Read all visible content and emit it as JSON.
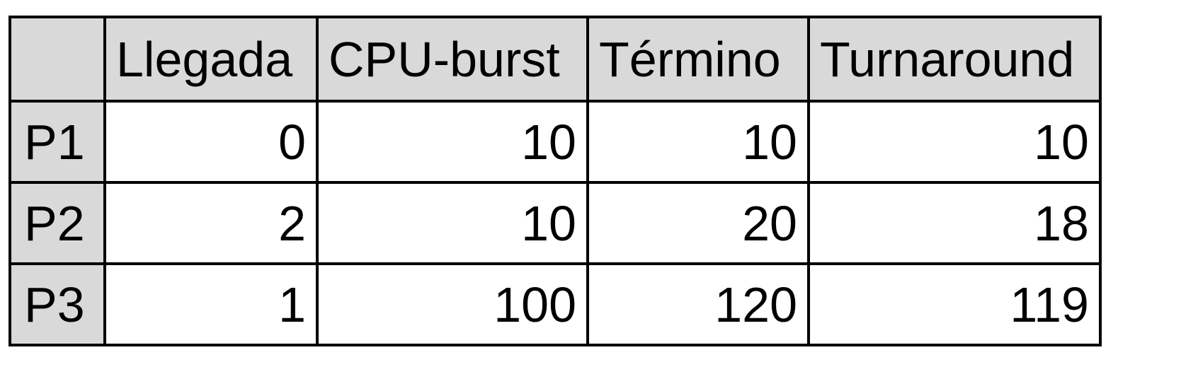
{
  "table": {
    "columns": [
      "",
      "Llegada",
      "CPU-burst",
      "Término",
      "Turnaround"
    ],
    "rows": [
      {
        "label": "P1",
        "values": [
          "0",
          "10",
          "10",
          "10"
        ]
      },
      {
        "label": "P2",
        "values": [
          "2",
          "10",
          "20",
          "18"
        ]
      },
      {
        "label": "P3",
        "values": [
          "1",
          "100",
          "120",
          "119"
        ]
      }
    ]
  },
  "colors": {
    "header_bg": "#d9d9d9",
    "cell_bg": "#ffffff",
    "border": "#000000"
  }
}
